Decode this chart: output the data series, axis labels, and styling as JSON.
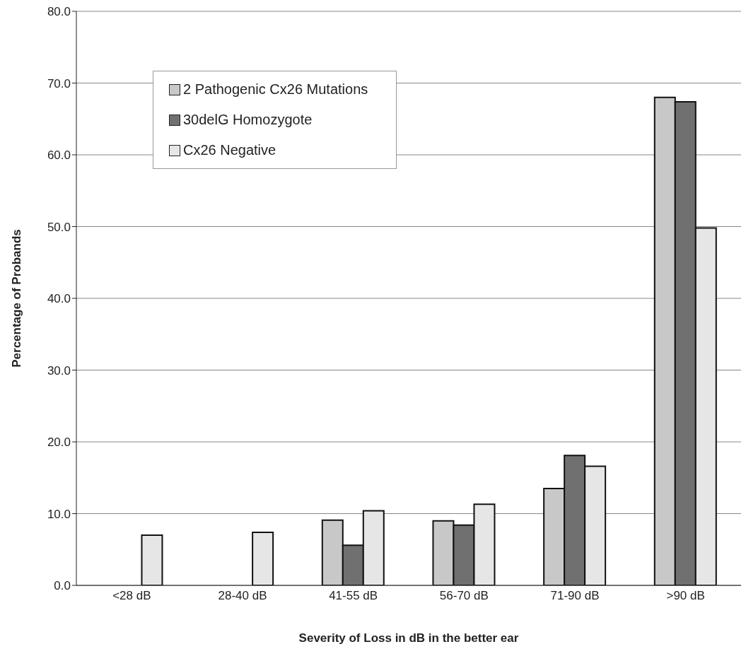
{
  "chart_data": {
    "type": "bar",
    "xlabel": "Severity of Loss in dB in the better ear",
    "ylabel": "Percentage of Probands",
    "categories": [
      "<28 dB",
      "28-40 dB",
      "41-55 dB",
      "56-70 dB",
      "71-90 dB",
      ">90 dB"
    ],
    "series": [
      {
        "name": "2 Pathogenic Cx26  Mutations",
        "color": "#c8c8c8",
        "values": [
          0,
          0,
          9.1,
          9.0,
          13.5,
          68.0
        ]
      },
      {
        "name": "30delG Homozygote",
        "color": "#707070",
        "values": [
          0,
          0,
          5.6,
          8.4,
          18.1,
          67.4
        ]
      },
      {
        "name": "Cx26  Negative",
        "color": "#e6e6e6",
        "values": [
          7.0,
          7.4,
          10.4,
          11.3,
          16.6,
          49.8
        ]
      }
    ],
    "ylim": [
      0,
      80
    ],
    "yticks": [
      {
        "value": 0,
        "label": "0.0"
      },
      {
        "value": 10,
        "label": "10.0"
      },
      {
        "value": 20,
        "label": "20.0"
      },
      {
        "value": 30,
        "label": "30.0"
      },
      {
        "value": 40,
        "label": "40.0"
      },
      {
        "value": 50,
        "label": "50.0"
      },
      {
        "value": 60,
        "label": "60.0"
      },
      {
        "value": 70,
        "label": "70.0"
      },
      {
        "value": 80,
        "label": "80.0"
      }
    ],
    "grid": "y",
    "legend": "top left"
  }
}
